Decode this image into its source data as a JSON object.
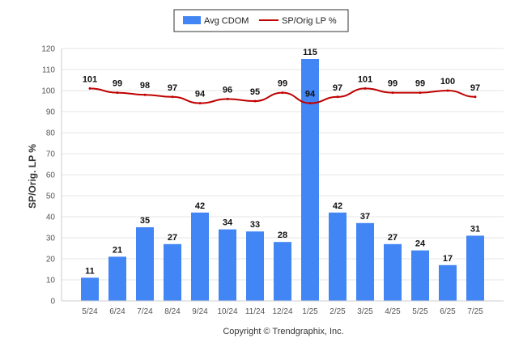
{
  "chart_data": {
    "type": "bar",
    "categories": [
      "5/24",
      "6/24",
      "7/24",
      "8/24",
      "9/24",
      "10/24",
      "11/24",
      "12/24",
      "1/25",
      "2/25",
      "3/25",
      "4/25",
      "5/25",
      "6/25",
      "7/25"
    ],
    "series": [
      {
        "name": "Avg CDOM",
        "type": "bar",
        "color": "#4285f4",
        "values": [
          11,
          21,
          35,
          27,
          42,
          34,
          33,
          28,
          115,
          42,
          37,
          27,
          24,
          17,
          31
        ]
      },
      {
        "name": "SP/Orig LP %",
        "type": "line",
        "color": "#c00000",
        "values": [
          101,
          99,
          98,
          97,
          94,
          96,
          95,
          99,
          94,
          97,
          101,
          99,
          99,
          100,
          97
        ]
      }
    ],
    "ylabel": "SP/Orig. LP %",
    "xlabel": "",
    "ylim": [
      0,
      120
    ],
    "yticks": [
      0,
      10,
      20,
      30,
      40,
      50,
      60,
      70,
      80,
      90,
      100,
      110,
      120
    ],
    "grid": true,
    "legend_position": "top-center",
    "footer": "Copyright © Trendgraphix, Inc."
  }
}
